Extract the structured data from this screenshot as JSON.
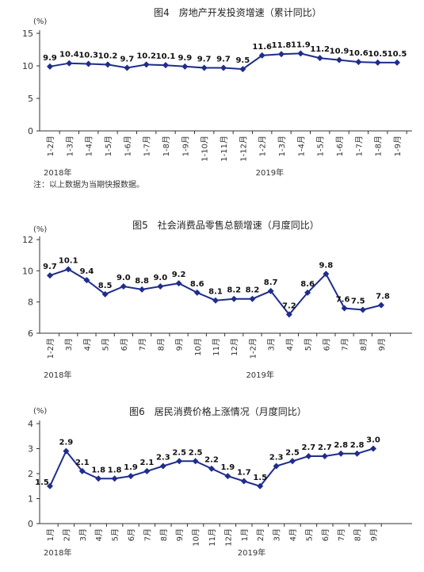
{
  "colors": {
    "series": "#1f2d8c",
    "axis": "#333333"
  },
  "chart_data": [
    {
      "type": "line",
      "title": "图4　房地产开发投资增速（累计同比）",
      "unit": "(%)",
      "ylim": [
        0,
        15
      ],
      "yticks": [
        0,
        5,
        10,
        15
      ],
      "categories": [
        "1-2月",
        "1-3月",
        "1-4月",
        "1-5月",
        "1-6月",
        "1-7月",
        "1-8月",
        "1-9月",
        "1-10月",
        "1-11月",
        "1-12月",
        "1-2月",
        "1-3月",
        "1-4月",
        "1-5月",
        "1-6月",
        "1-7月",
        "1-8月",
        "1-9月"
      ],
      "values": [
        9.9,
        10.4,
        10.3,
        10.2,
        9.7,
        10.2,
        10.1,
        9.9,
        9.7,
        9.7,
        9.5,
        11.6,
        11.8,
        11.9,
        11.2,
        10.9,
        10.6,
        10.5,
        10.5
      ],
      "year_labels": [
        {
          "index": 0,
          "text": "2018年"
        },
        {
          "index": 11,
          "text": "2019年"
        }
      ],
      "note": "注：以上数据为当期快报数据。",
      "grid": false,
      "legend": "none"
    },
    {
      "type": "line",
      "title": "图5　社会消费品零售总额增速（月度同比）",
      "unit": "(%)",
      "ylim": [
        6,
        12
      ],
      "yticks": [
        6,
        8,
        10,
        12
      ],
      "categories": [
        "1-2月",
        "3月",
        "4月",
        "5月",
        "6月",
        "7月",
        "8月",
        "9月",
        "10月",
        "11月",
        "12月",
        "1-2月",
        "3月",
        "4月",
        "5月",
        "6月",
        "7月",
        "8月",
        "9月"
      ],
      "values": [
        9.7,
        10.1,
        9.4,
        8.5,
        9.0,
        8.8,
        9.0,
        9.2,
        8.6,
        8.1,
        8.2,
        8.2,
        8.7,
        7.2,
        8.6,
        9.8,
        7.6,
        7.5,
        7.8
      ],
      "year_labels": [
        {
          "index": 0,
          "text": "2018年"
        },
        {
          "index": 11,
          "text": "2019年"
        }
      ],
      "grid": false,
      "legend": "none"
    },
    {
      "type": "line",
      "title": "图6　居民消费价格上涨情况（月度同比）",
      "unit": "(%)",
      "ylim": [
        0,
        4
      ],
      "yticks": [
        0,
        1,
        2,
        3,
        4
      ],
      "categories": [
        "1月",
        "2月",
        "3月",
        "4月",
        "5月",
        "6月",
        "7月",
        "8月",
        "9月",
        "10月",
        "11月",
        "12月",
        "1月",
        "2月",
        "3月",
        "4月",
        "5月",
        "6月",
        "7月",
        "8月",
        "9月"
      ],
      "values": [
        1.5,
        2.9,
        2.1,
        1.8,
        1.8,
        1.9,
        2.1,
        2.3,
        2.5,
        2.5,
        2.2,
        1.9,
        1.7,
        1.5,
        2.3,
        2.5,
        2.7,
        2.7,
        2.8,
        2.8,
        3.0
      ],
      "year_labels": [
        {
          "index": 0,
          "text": "2018年"
        },
        {
          "index": 12,
          "text": "2019年"
        }
      ],
      "grid": false,
      "legend": "none"
    }
  ]
}
